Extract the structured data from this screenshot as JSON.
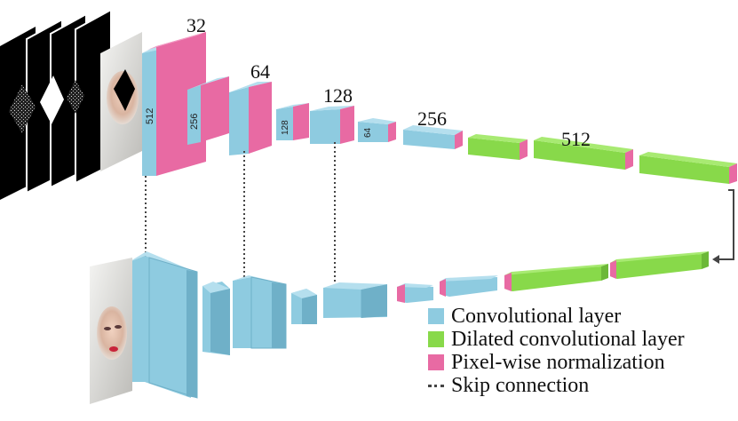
{
  "encoder_channel_labels": [
    "32",
    "64",
    "128",
    "256",
    "512"
  ],
  "encoder_side_labels": [
    "512",
    "256",
    "128",
    "64"
  ],
  "legend": {
    "convolutional": "Convolutional layer",
    "dilated": "Dilated convolutional layer",
    "normalization": "Pixel-wise normalization",
    "skip": "Skip connection"
  },
  "colors": {
    "conv": "#8ecbe0",
    "conv_side": "#6fb0c8",
    "conv_top": "#b5dfee",
    "dilated": "#88d94a",
    "dilated_side": "#6cb838",
    "dilated_top": "#a8ea72",
    "norm": "#e86aa3",
    "norm_side": "#c94f88",
    "norm_top": "#f39bc4"
  },
  "images": {
    "input_masks": "mask-stack",
    "input_face": "masked-face-image",
    "output_face": "restored-face-image"
  }
}
